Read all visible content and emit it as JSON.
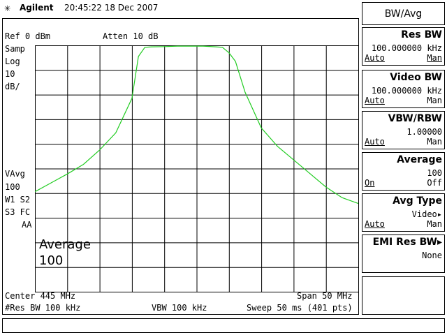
{
  "header": {
    "logo_star": "✳",
    "logo_text": "Agilent",
    "datetime": "20:45:22  18 Dec 2007"
  },
  "screen": {
    "ref": "Ref 0 dBm",
    "atten": "Atten 10 dB",
    "left_annotations": [
      "Samp",
      "Log",
      "10",
      "dB/"
    ],
    "left_annotations_lower": [
      "VAvg",
      "100",
      "W1  S2",
      "S3  FC",
      "AA"
    ],
    "overlay_line1": "Average",
    "overlay_line2": "100",
    "center": "Center 445 MHz",
    "span": "Span 50 MHz",
    "res_bw": "#Res BW 100 kHz",
    "vbw": "VBW 100 kHz",
    "sweep": "Sweep 50 ms (401 pts)",
    "trace_color": "#22cc22"
  },
  "trace": {
    "x_start_mhz": 420,
    "x_stop_mhz": 470,
    "ref_db": 0,
    "db_per_div": 10,
    "points": [
      [
        420.0,
        -59.4
      ],
      [
        422.5,
        -55.8
      ],
      [
        425.0,
        -52.2
      ],
      [
        427.5,
        -48.3
      ],
      [
        430.0,
        -42.5
      ],
      [
        432.5,
        -35.5
      ],
      [
        435.0,
        -21.5
      ],
      [
        436.0,
        -4.5
      ],
      [
        437.0,
        -0.8
      ],
      [
        438.0,
        -0.6
      ],
      [
        440.0,
        -0.5
      ],
      [
        442.0,
        -0.3
      ],
      [
        444.0,
        -0.3
      ],
      [
        446.0,
        -0.3
      ],
      [
        448.0,
        -0.6
      ],
      [
        449.0,
        -0.8
      ],
      [
        450.0,
        -3.0
      ],
      [
        451.0,
        -6.5
      ],
      [
        452.5,
        -19.0
      ],
      [
        455.0,
        -33.5
      ],
      [
        457.5,
        -41.0
      ],
      [
        460.0,
        -46.5
      ],
      [
        462.5,
        -52.0
      ],
      [
        465.0,
        -57.5
      ],
      [
        467.5,
        -61.8
      ],
      [
        470.0,
        -64.2
      ]
    ]
  },
  "menu": {
    "title": "BW/Avg",
    "softkeys": [
      {
        "title": "Res BW",
        "value": "100.000000 kHz",
        "left": "Auto",
        "right": "Man",
        "right_underline": true
      },
      {
        "title": "Video BW",
        "value": "100.000000 kHz",
        "left": "Auto",
        "right": "Man",
        "right_underline": false
      },
      {
        "title": "VBW/RBW",
        "value": "1.00000",
        "left": "Auto",
        "right": "Man",
        "right_underline": false
      },
      {
        "title": "Average",
        "value": "100",
        "left": "On",
        "right": "Off",
        "right_underline": false
      },
      {
        "title": "Avg Type",
        "value": "Video▸",
        "left": "Auto",
        "right": "Man",
        "right_underline": false
      },
      {
        "title": "EMI Res BW▸",
        "value": "None",
        "left": "",
        "right": "",
        "right_underline": false
      },
      {
        "title": "",
        "value": "",
        "left": "",
        "right": "",
        "right_underline": false
      }
    ]
  }
}
